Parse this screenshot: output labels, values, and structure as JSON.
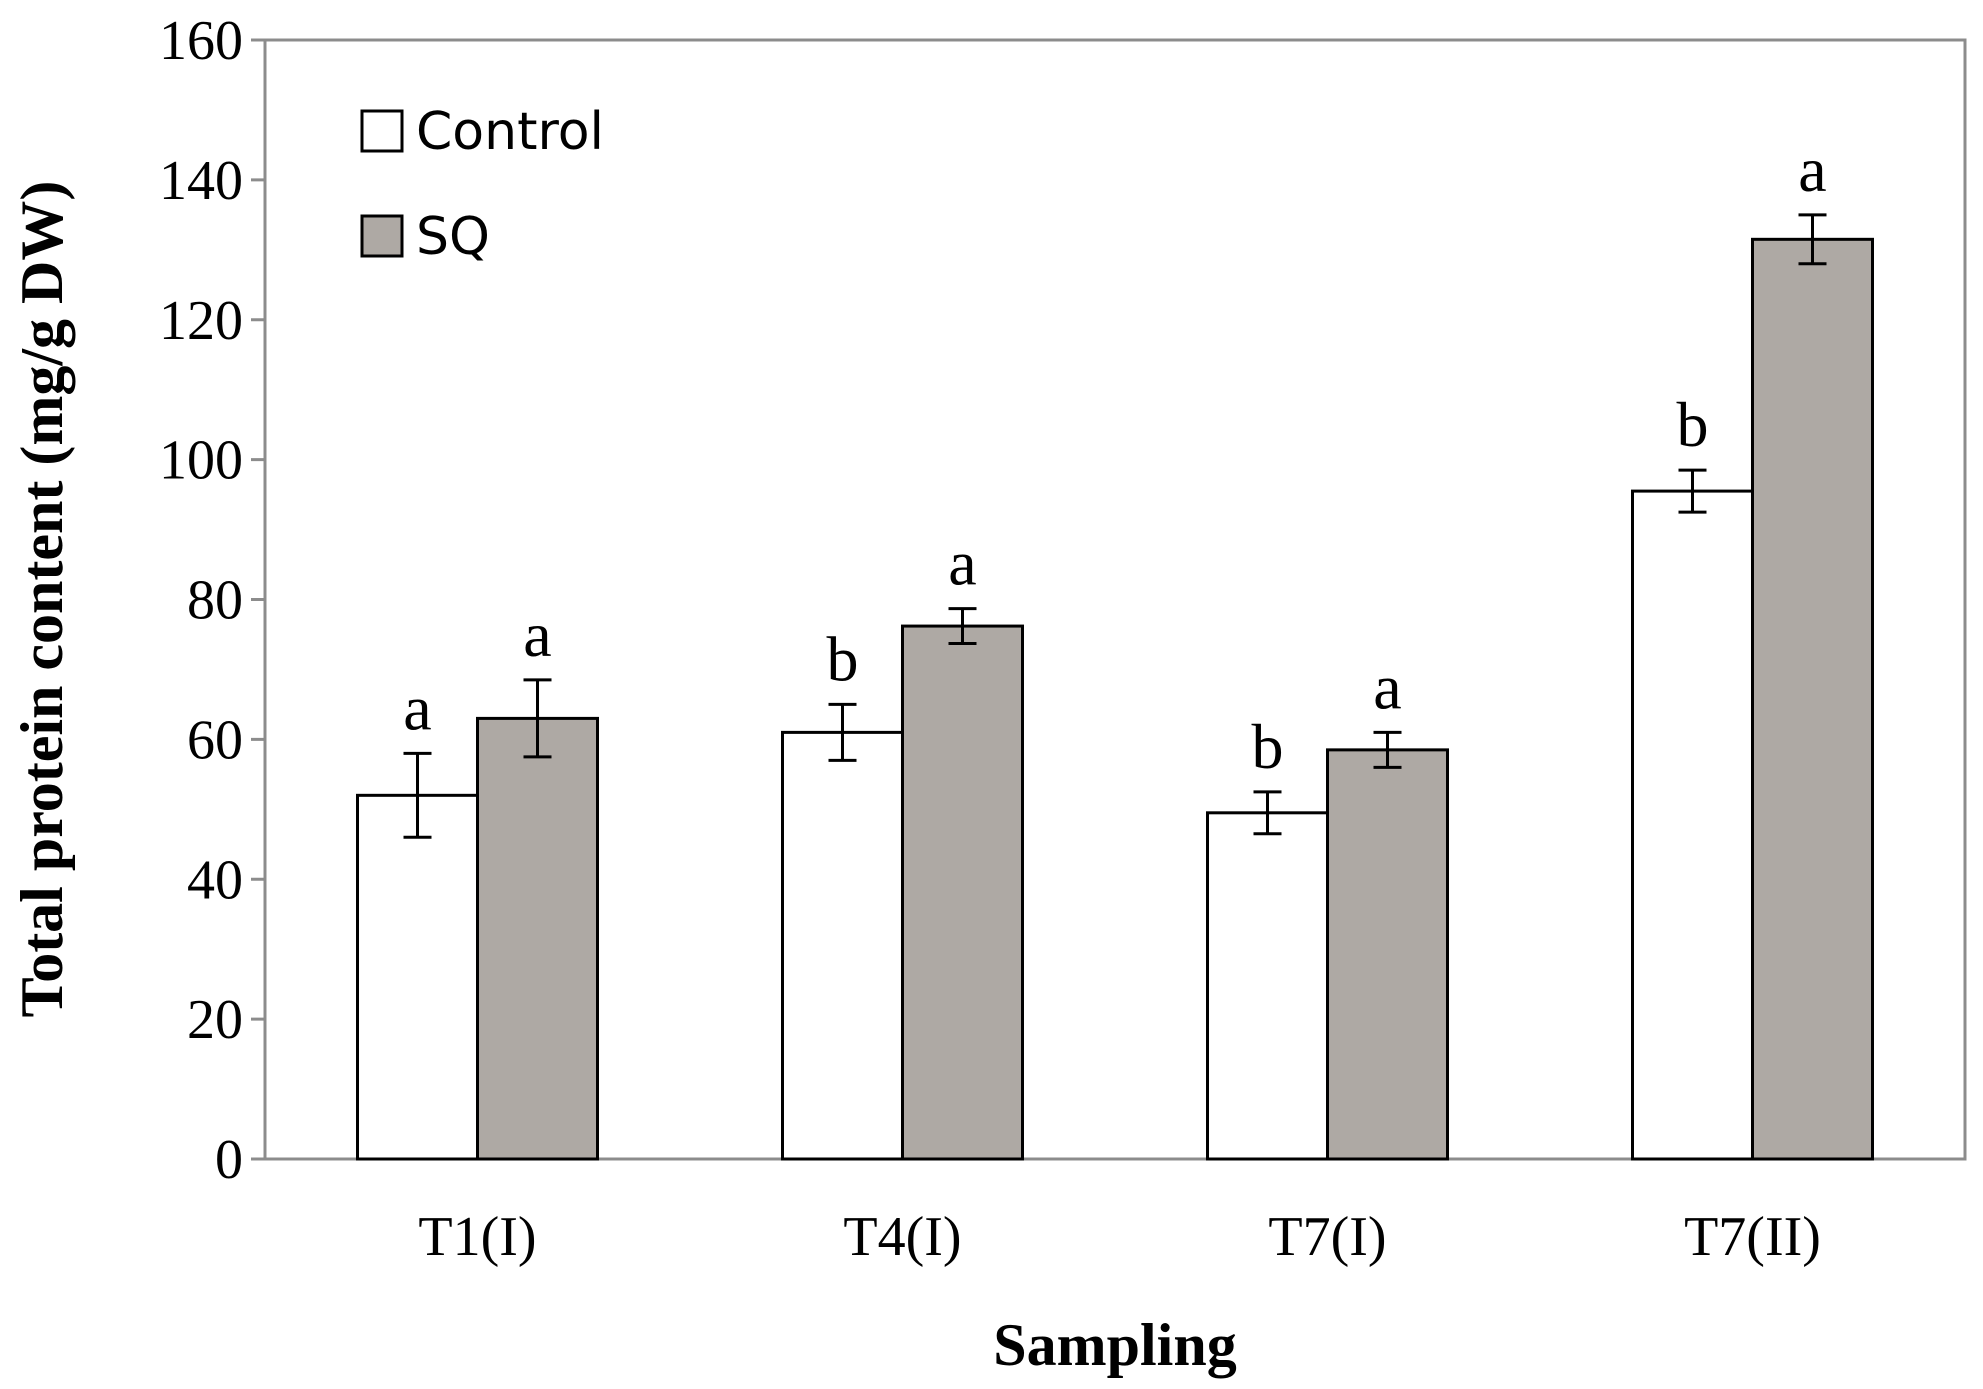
{
  "chart_data": {
    "type": "bar",
    "title": "",
    "xlabel": "Sampling",
    "ylabel": "Total protein content (mg/g DW)",
    "ylim": [
      0,
      160
    ],
    "yticks": [
      0,
      20,
      40,
      60,
      80,
      100,
      120,
      140,
      160
    ],
    "categories": [
      "T1(I)",
      "T4(I)",
      "T7(I)",
      "T7(II)"
    ],
    "legend_position": "top-left",
    "grid": false,
    "series": [
      {
        "name": "Control",
        "color": "#ffffff",
        "values": [
          52,
          61,
          49.5,
          95.5
        ],
        "errors": [
          6,
          4,
          3,
          3
        ],
        "significance": [
          "a",
          "b",
          "b",
          "b"
        ]
      },
      {
        "name": "SQ",
        "color": "#aea9a4",
        "values": [
          63,
          76.2,
          58.5,
          131.5
        ],
        "errors": [
          5.5,
          2.5,
          2.5,
          3.5
        ],
        "significance": [
          "a",
          "a",
          "a",
          "a"
        ]
      }
    ]
  }
}
